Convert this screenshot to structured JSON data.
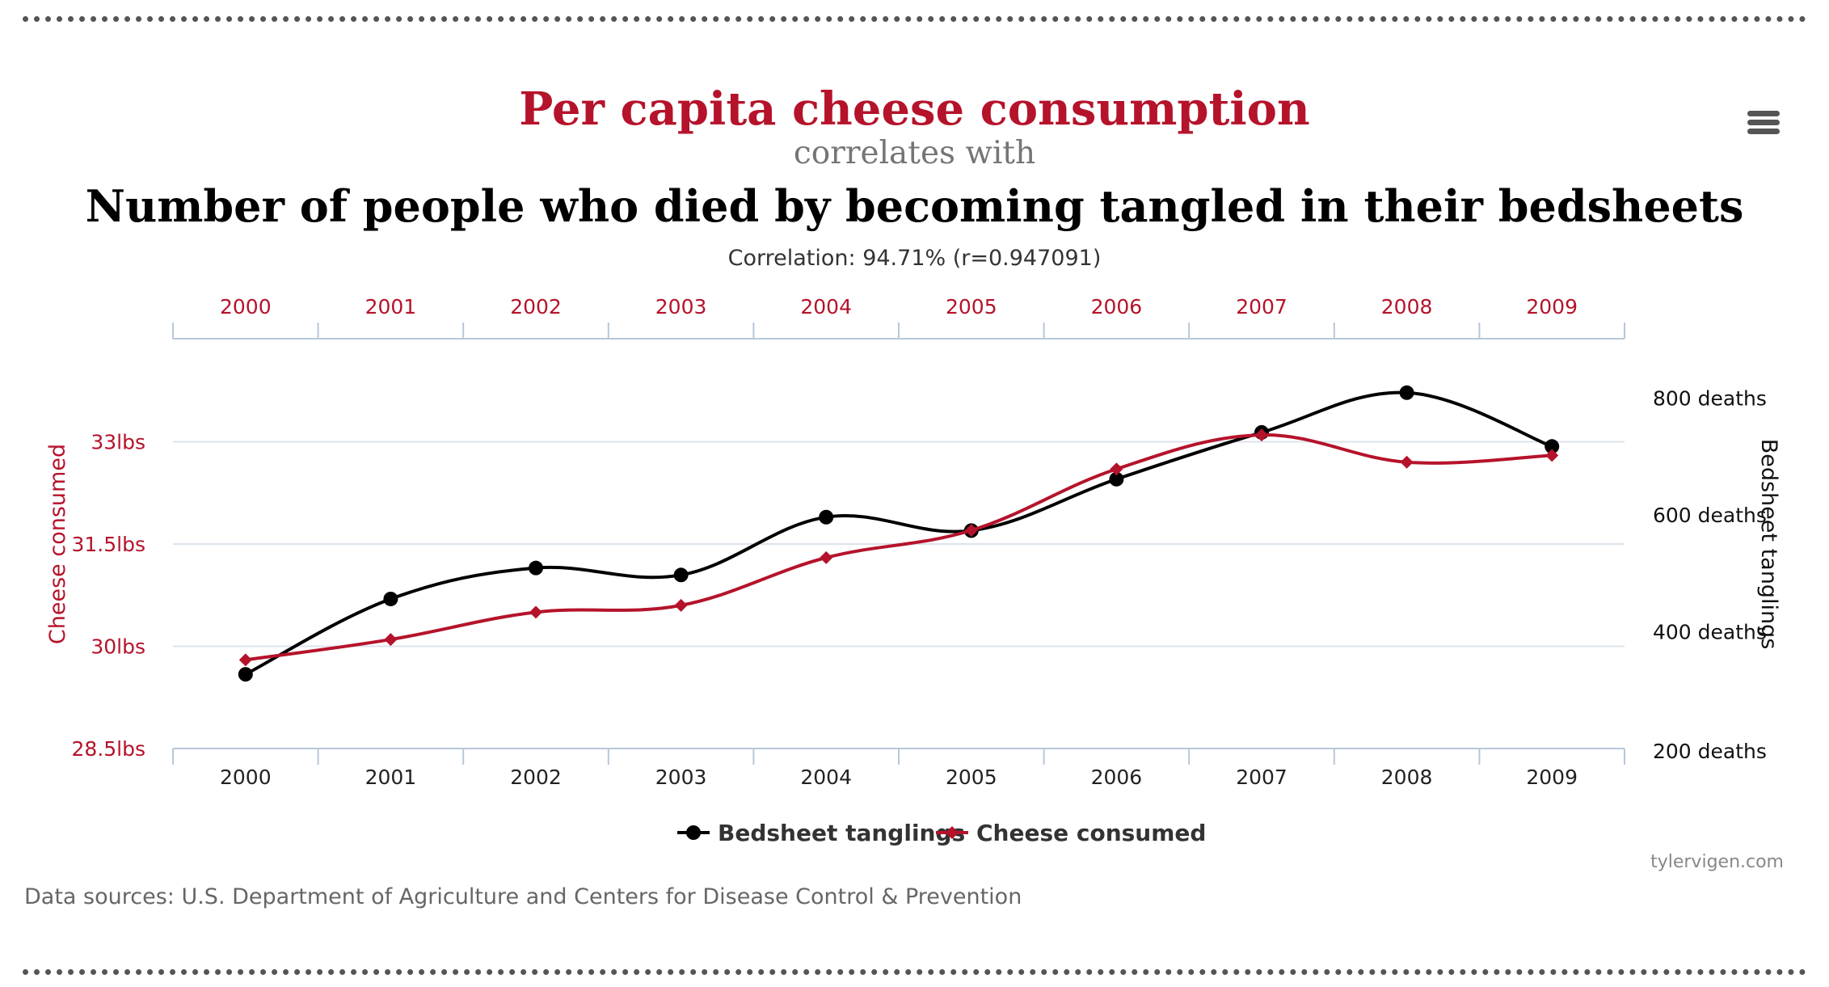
{
  "header": {
    "title": "Per capita cheese consumption",
    "connector": "correlates with",
    "subtitle": "Number of people who died by becoming tangled in their bedsheets",
    "correlation": "Correlation: 94.71% (r=0.947091)"
  },
  "footer": {
    "sources": "Data sources: U.S. Department of Agriculture and Centers for Disease Control & Prevention",
    "credit": "tylervigen.com"
  },
  "icons": {
    "menu": "hamburger-menu-icon"
  },
  "colors": {
    "accent": "#b5132b",
    "gray": "#757575",
    "dark": "#000000",
    "grid": "#dde3ec",
    "axis": "#b8c7d9"
  },
  "chart_data": {
    "type": "line",
    "categories": [
      "2000",
      "2001",
      "2002",
      "2003",
      "2004",
      "2005",
      "2006",
      "2007",
      "2008",
      "2009"
    ],
    "series": [
      {
        "name": "Bedsheet tanglings",
        "axis": "right",
        "color": "#000000",
        "marker": "circle",
        "values": [
          327,
          456,
          509,
          497,
          596,
          573,
          661,
          741,
          809,
          717
        ]
      },
      {
        "name": "Cheese consumed",
        "axis": "left",
        "color": "#b5132b",
        "marker": "diamond",
        "values": [
          29.8,
          30.1,
          30.5,
          30.6,
          31.3,
          31.7,
          32.6,
          33.1,
          32.7,
          32.8
        ]
      }
    ],
    "y_left": {
      "label": "Cheese consumed",
      "min": 28.5,
      "max": 34.5,
      "ticks": [
        28.5,
        30,
        31.5,
        33
      ],
      "tick_labels": [
        "28.5lbs",
        "30lbs",
        "31.5lbs",
        "33lbs"
      ]
    },
    "y_right": {
      "label": "Bedsheet tanglings",
      "min": 200,
      "max": 900,
      "ticks": [
        200,
        400,
        600,
        800
      ],
      "tick_labels": [
        "200 deaths",
        "400 deaths",
        "600 deaths",
        "800 deaths"
      ]
    },
    "x_axis_top": true,
    "grid": true,
    "legend_position": "bottom-center"
  }
}
